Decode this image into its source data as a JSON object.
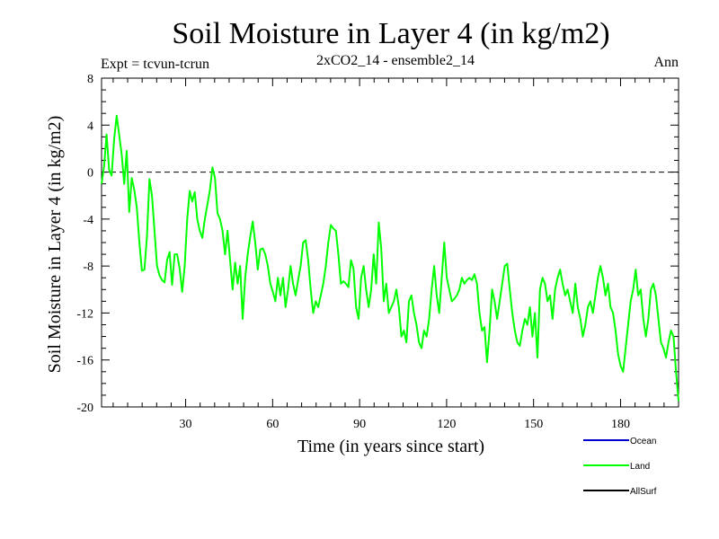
{
  "chart_data": {
    "type": "line",
    "title": "Soil Moisture in Layer 4 (in kg/m2)",
    "subtitle": "2xCO2_14 - ensemble2_14",
    "annotation_left": "Expt = tcvun-tcrun",
    "annotation_right": "Ann",
    "xlabel": "Time (in years since start)",
    "ylabel": "Soil Moisture in Layer 4 (in kg/m2)",
    "xlim": [
      1,
      200
    ],
    "ylim": [
      -20,
      8
    ],
    "xticks": [
      30,
      60,
      90,
      120,
      150,
      180
    ],
    "yticks": [
      8,
      4,
      0,
      -4,
      -8,
      -12,
      -16,
      -20
    ],
    "zero_line": true,
    "legend_position": "bottom-right",
    "series": [
      {
        "name": "Ocean",
        "color": "#0000cc",
        "values": []
      },
      {
        "name": "Land",
        "color": "#00ff00",
        "x_start": 1,
        "x_step": 1,
        "values": [
          -1.0,
          0.5,
          3.2,
          0.2,
          -0.3,
          2.8,
          4.8,
          3.2,
          1.5,
          -1.0,
          1.8,
          -3.4,
          -0.5,
          -1.5,
          -3.0,
          -6.0,
          -8.4,
          -8.3,
          -5.5,
          -0.6,
          -2.0,
          -5.0,
          -8.0,
          -8.8,
          -9.2,
          -9.4,
          -7.5,
          -6.8,
          -9.6,
          -7.0,
          -7.0,
          -8.2,
          -10.2,
          -8.0,
          -4.0,
          -1.6,
          -2.5,
          -1.7,
          -4.0,
          -5.0,
          -5.6,
          -4.0,
          -2.8,
          -1.5,
          0.4,
          -0.5,
          -3.5,
          -4.0,
          -5.0,
          -7.0,
          -5.0,
          -7.5,
          -10.0,
          -7.7,
          -9.5,
          -8.0,
          -12.5,
          -9.0,
          -7.0,
          -5.5,
          -4.2,
          -6.0,
          -8.3,
          -6.6,
          -6.5,
          -7.0,
          -8.0,
          -9.5,
          -10.2,
          -11.0,
          -9.0,
          -10.5,
          -9.0,
          -11.5,
          -10.0,
          -8.0,
          -9.5,
          -10.5,
          -9.2,
          -8.0,
          -6.0,
          -5.8,
          -7.5,
          -10.0,
          -12.0,
          -11.0,
          -11.5,
          -10.5,
          -9.5,
          -8.0,
          -6.0,
          -4.5,
          -4.8,
          -5.0,
          -7.0,
          -9.5,
          -9.3,
          -9.5,
          -9.8,
          -7.5,
          -8.2,
          -11.5,
          -12.5,
          -9.0,
          -8.0,
          -10.0,
          -11.5,
          -10.0,
          -7.0,
          -9.5,
          -4.3,
          -6.5,
          -11.0,
          -9.5,
          -12.0,
          -11.5,
          -11.0,
          -10.0,
          -11.5,
          -14.0,
          -13.5,
          -14.5,
          -11.0,
          -10.5,
          -12.0,
          -13.0,
          -14.5,
          -15.0,
          -13.5,
          -14.0,
          -12.5,
          -10.0,
          -8.0,
          -10.5,
          -12.0,
          -9.0,
          -6.0,
          -9.0,
          -10.0,
          -11.0,
          -10.8,
          -10.5,
          -10.0,
          -9.0,
          -9.5,
          -9.2,
          -9.0,
          -9.2,
          -8.7,
          -9.5,
          -12.0,
          -13.5,
          -13.2,
          -16.2,
          -13.5,
          -10.0,
          -11.0,
          -12.5,
          -11.0,
          -9.5,
          -8.0,
          -7.8,
          -10.0,
          -12.0,
          -13.5,
          -14.5,
          -14.8,
          -13.5,
          -12.5,
          -13.0,
          -11.5,
          -14.0,
          -12.0,
          -15.8,
          -10.0,
          -9.0,
          -9.5,
          -11.0,
          -10.5,
          -12.5,
          -10.0,
          -9.0,
          -8.3,
          -9.5,
          -10.5,
          -10.0,
          -11.0,
          -12.0,
          -9.5,
          -11.5,
          -12.5,
          -14.0,
          -13.0,
          -11.5,
          -11.0,
          -12.0,
          -10.5,
          -9.0,
          -8.0,
          -9.0,
          -10.5,
          -9.5,
          -11.5,
          -12.0,
          -13.5,
          -15.5,
          -16.5,
          -17.0,
          -15.0,
          -13.0,
          -11.0,
          -10.0,
          -8.3,
          -10.5,
          -10.0,
          -12.5,
          -14.0,
          -12.5,
          -10.0,
          -9.5,
          -10.5,
          -12.5,
          -14.5,
          -15.0,
          -15.8,
          -14.5,
          -13.5,
          -14.0,
          -17.0,
          -19.5
        ]
      },
      {
        "name": "AllSurf",
        "color": "#000000",
        "values": []
      }
    ]
  }
}
